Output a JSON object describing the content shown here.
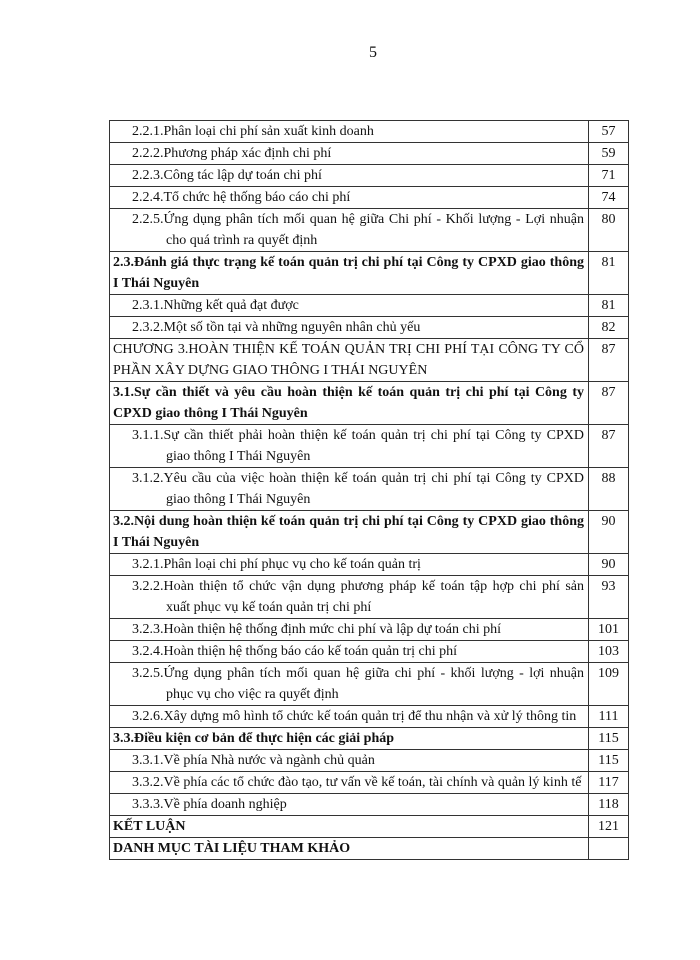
{
  "page_number": "5",
  "toc": [
    {
      "title": "2.2.1.Phân loại chi phí sản xuất kinh doanh",
      "page": "57",
      "level": "sub"
    },
    {
      "title": "2.2.2.Phương pháp xác định chi phí",
      "page": "59",
      "level": "sub"
    },
    {
      "title": "2.2.3.Công tác lập dự toán chi phí",
      "page": "71",
      "level": "sub"
    },
    {
      "title": "2.2.4.Tổ chức hệ thống báo cáo chi phí",
      "page": "74",
      "level": "sub"
    },
    {
      "title": "2.2.5.Ứng dụng phân tích mối quan hệ giữa Chi phí - Khối lượng - Lợi nhuận cho quá trình ra quyết định",
      "page": "80",
      "level": "sub"
    },
    {
      "title": "2.3.Đánh giá thực trạng kế toán quản trị chi phí tại Công ty CPXD giao thông I Thái Nguyên",
      "page": "81",
      "level": "section"
    },
    {
      "title": "2.3.1.Những kết quả đạt được",
      "page": "81",
      "level": "sub"
    },
    {
      "title": "2.3.2.Một số tồn tại và những nguyên nhân chủ yếu",
      "page": "82",
      "level": "sub"
    },
    {
      "title": "CHƯƠNG 3.HOÀN THIỆN KẾ TOÁN QUẢN TRỊ CHI PHÍ TẠI CÔNG TY CỔ PHẦN XÂY DỰNG GIAO THÔNG I THÁI NGUYÊN",
      "page": "87",
      "level": "chapter"
    },
    {
      "title": "3.1.Sự cần thiết và yêu cầu hoàn thiện kế toán quản trị chi phí tại Công ty CPXD giao thông I Thái Nguyên",
      "page": "87",
      "level": "section"
    },
    {
      "title": "3.1.1.Sự cần thiết phải hoàn thiện kế toán quản trị chi phí tại Công ty CPXD giao thông I Thái Nguyên",
      "page": "87",
      "level": "sub"
    },
    {
      "title": "3.1.2.Yêu cầu của việc hoàn thiện kế toán quản trị chi phí tại Công ty CPXD giao thông I Thái Nguyên",
      "page": "88",
      "level": "sub"
    },
    {
      "title": "3.2.Nội dung hoàn thiện kế toán quản trị chi phí tại Công ty CPXD giao thông I Thái Nguyên",
      "page": "90",
      "level": "section"
    },
    {
      "title": "3.2.1.Phân loại chi phí phục vụ cho kế toán quản trị",
      "page": "90",
      "level": "sub"
    },
    {
      "title": "3.2.2.Hoàn thiện tổ chức vận dụng phương pháp kế toán tập hợp chi phí sản xuất phục vụ kế toán quản trị chi phí",
      "page": "93",
      "level": "sub"
    },
    {
      "title": "3.2.3.Hoàn thiện hệ thống định mức chi phí và lập dự toán chi phí",
      "page": "101",
      "level": "sub"
    },
    {
      "title": "3.2.4.Hoàn thiện hệ thống báo cáo kế toán quản trị chi phí",
      "page": "103",
      "level": "sub"
    },
    {
      "title": "3.2.5.Ứng dụng phân tích mối quan hệ giữa chi phí - khối lượng - lợi nhuận phục vụ cho việc ra quyết định",
      "page": "109",
      "level": "sub"
    },
    {
      "title": "3.2.6.Xây dựng mô hình tổ chức kế toán quản trị để thu nhận và xử lý thông tin",
      "page": "111",
      "level": "sub2"
    },
    {
      "title": "3.3.Điều kiện cơ bản để thực hiện các giải pháp",
      "page": "115",
      "level": "section"
    },
    {
      "title": "3.3.1.Về phía Nhà nước và ngành chủ quản",
      "page": "115",
      "level": "sub"
    },
    {
      "title": "3.3.2.Về phía các tổ chức đào tạo, tư    vấn về kế toán, tài chính và quản lý kinh tế",
      "page": "117",
      "level": "sub2"
    },
    {
      "title": "3.3.3.Về phía doanh nghiệp",
      "page": "118",
      "level": "sub"
    },
    {
      "title": "KẾT LUẬN",
      "page": "121",
      "level": "section"
    },
    {
      "title": "DANH MỤC TÀI LIỆU THAM KHẢO",
      "page": "",
      "level": "section"
    }
  ]
}
